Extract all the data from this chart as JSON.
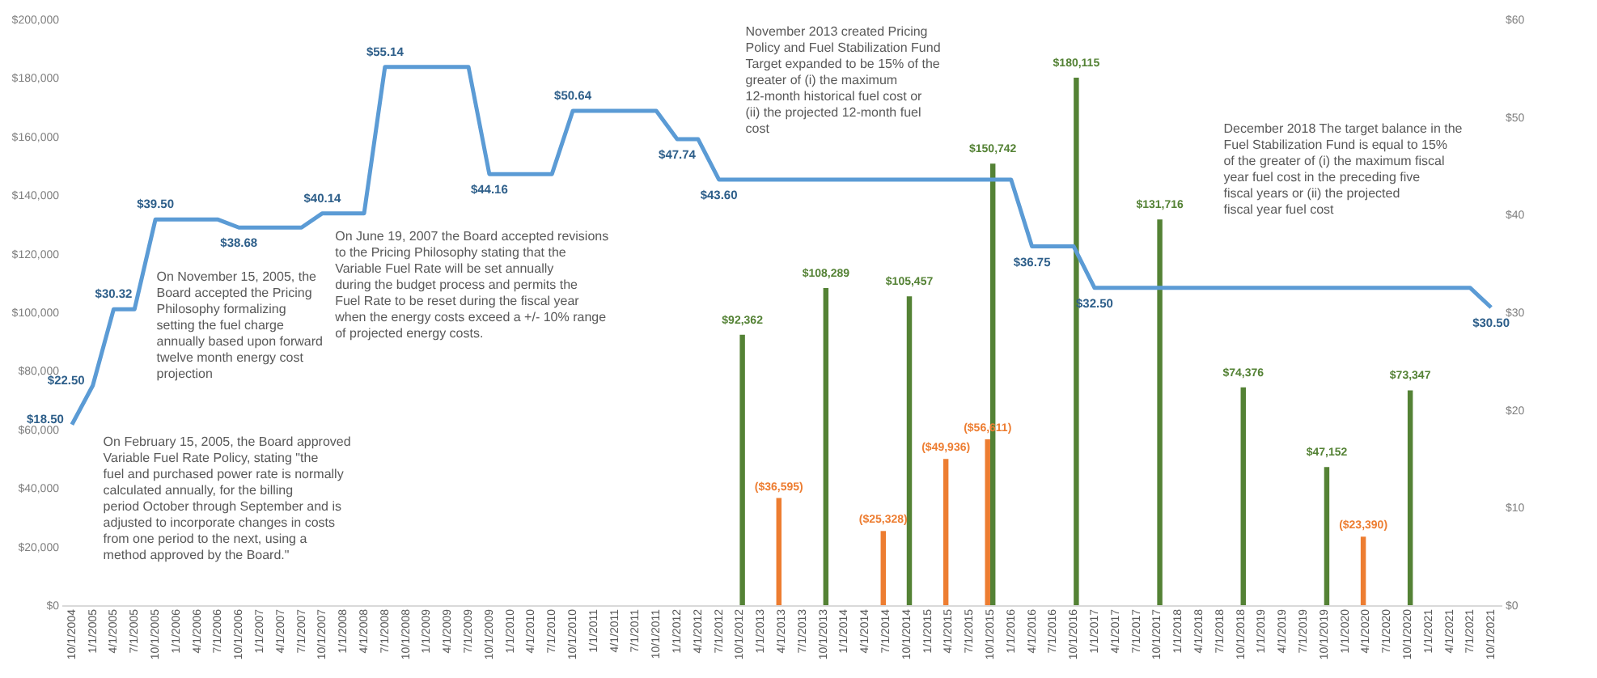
{
  "chart_data": {
    "type": "bar",
    "categories": [
      "10/1/2004",
      "1/1/2005",
      "4/1/2005",
      "7/1/2005",
      "10/1/2005",
      "1/1/2006",
      "4/1/2006",
      "7/1/2006",
      "10/1/2006",
      "1/1/2007",
      "4/1/2007",
      "7/1/2007",
      "10/1/2007",
      "1/1/2008",
      "4/1/2008",
      "7/1/2008",
      "10/1/2008",
      "1/1/2009",
      "4/1/2009",
      "7/1/2009",
      "10/1/2009",
      "1/1/2010",
      "4/1/2010",
      "7/1/2010",
      "10/1/2010",
      "1/1/2011",
      "4/1/2011",
      "7/1/2011",
      "10/1/2011",
      "1/1/2012",
      "4/1/2012",
      "7/1/2012",
      "10/1/2012",
      "1/1/2013",
      "4/1/2013",
      "7/1/2013",
      "10/1/2013",
      "1/1/2014",
      "4/1/2014",
      "7/1/2014",
      "10/1/2014",
      "1/1/2015",
      "4/1/2015",
      "7/1/2015",
      "10/1/2015",
      "1/1/2016",
      "4/1/2016",
      "7/1/2016",
      "10/1/2016",
      "1/1/2017",
      "4/1/2017",
      "7/1/2017",
      "10/1/2017",
      "1/1/2018",
      "4/1/2018",
      "7/1/2018",
      "10/1/2018",
      "1/1/2019",
      "4/1/2019",
      "7/1/2019",
      "10/1/2019",
      "1/1/2020",
      "4/1/2020",
      "7/1/2020",
      "10/1/2020",
      "1/1/2021",
      "4/1/2021",
      "7/1/2021",
      "10/1/2021"
    ],
    "series": [
      {
        "color": "#548235",
        "values": [
          null,
          null,
          null,
          null,
          null,
          null,
          null,
          null,
          null,
          null,
          null,
          null,
          null,
          null,
          null,
          null,
          null,
          null,
          null,
          null,
          null,
          null,
          null,
          null,
          null,
          null,
          null,
          null,
          null,
          null,
          null,
          null,
          92362,
          null,
          null,
          null,
          108289,
          null,
          null,
          null,
          105457,
          null,
          null,
          null,
          150742,
          null,
          null,
          null,
          180115,
          null,
          null,
          null,
          131716,
          null,
          null,
          null,
          74376,
          null,
          null,
          null,
          47152,
          null,
          null,
          null,
          73347,
          null,
          null,
          null,
          null
        ],
        "value_labels": [
          null,
          null,
          null,
          null,
          null,
          null,
          null,
          null,
          null,
          null,
          null,
          null,
          null,
          null,
          null,
          null,
          null,
          null,
          null,
          null,
          null,
          null,
          null,
          null,
          null,
          null,
          null,
          null,
          null,
          null,
          null,
          null,
          "$92,362",
          null,
          null,
          null,
          "$108,289",
          null,
          null,
          null,
          "$105,457",
          null,
          null,
          null,
          "$150,742",
          null,
          null,
          null,
          "$180,115",
          null,
          null,
          null,
          "$131,716",
          null,
          null,
          null,
          "$74,376",
          null,
          null,
          null,
          "$47,152",
          null,
          null,
          null,
          "$73,347",
          null,
          null,
          null,
          null
        ]
      },
      {
        "color": "#ed7d31",
        "values": [
          null,
          null,
          null,
          null,
          null,
          null,
          null,
          null,
          null,
          null,
          null,
          null,
          null,
          null,
          null,
          null,
          null,
          null,
          null,
          null,
          null,
          null,
          null,
          null,
          null,
          null,
          null,
          null,
          null,
          null,
          null,
          null,
          null,
          null,
          36595,
          null,
          null,
          null,
          null,
          25328,
          null,
          null,
          49936,
          null,
          56611,
          null,
          null,
          null,
          null,
          null,
          null,
          null,
          null,
          null,
          null,
          null,
          null,
          null,
          null,
          null,
          null,
          null,
          23390,
          null,
          null,
          null,
          null,
          null,
          null
        ],
        "value_labels": [
          null,
          null,
          null,
          null,
          null,
          null,
          null,
          null,
          null,
          null,
          null,
          null,
          null,
          null,
          null,
          null,
          null,
          null,
          null,
          null,
          null,
          null,
          null,
          null,
          null,
          null,
          null,
          null,
          null,
          null,
          null,
          null,
          null,
          null,
          "($36,595)",
          null,
          null,
          null,
          null,
          "($25,328)",
          null,
          null,
          "($49,936)",
          null,
          "($56,611)",
          null,
          null,
          null,
          null,
          null,
          null,
          null,
          null,
          null,
          null,
          null,
          null,
          null,
          null,
          null,
          null,
          null,
          "($23,390)",
          null,
          null,
          null,
          null,
          null,
          null
        ]
      },
      {
        "type": "line",
        "axis": "y2",
        "color": "#5b9bd5",
        "values": [
          18.5,
          22.5,
          30.32,
          30.32,
          39.5,
          39.5,
          39.5,
          39.5,
          38.68,
          38.68,
          38.68,
          38.68,
          40.14,
          40.14,
          40.14,
          55.14,
          55.14,
          55.14,
          55.14,
          55.14,
          44.16,
          44.16,
          44.16,
          44.16,
          50.64,
          50.64,
          50.64,
          50.64,
          50.64,
          47.74,
          47.74,
          43.6,
          43.6,
          43.6,
          43.6,
          43.6,
          43.6,
          43.6,
          43.6,
          43.6,
          43.6,
          43.6,
          43.6,
          43.6,
          43.6,
          43.6,
          36.75,
          36.75,
          36.75,
          32.5,
          32.5,
          32.5,
          32.5,
          32.5,
          32.5,
          32.5,
          32.5,
          32.5,
          32.5,
          32.5,
          32.5,
          32.5,
          32.5,
          32.5,
          32.5,
          32.5,
          32.5,
          32.5,
          30.5
        ],
        "value_labels": [
          "$18.50",
          "$22.50",
          "$30.32",
          null,
          "$39.50",
          null,
          null,
          null,
          "$38.68",
          null,
          null,
          null,
          "$40.14",
          null,
          null,
          "$55.14",
          null,
          null,
          null,
          null,
          "$44.16",
          null,
          null,
          null,
          "$50.64",
          null,
          null,
          null,
          null,
          "$47.74",
          null,
          "$43.60",
          null,
          null,
          null,
          null,
          null,
          null,
          null,
          null,
          null,
          null,
          null,
          null,
          null,
          null,
          "$36.75",
          null,
          null,
          "$32.50",
          null,
          null,
          null,
          null,
          null,
          null,
          null,
          null,
          null,
          null,
          null,
          null,
          null,
          null,
          null,
          null,
          null,
          null,
          "$30.50"
        ]
      }
    ],
    "ylim": [
      0,
      200000
    ],
    "yticks": [
      {
        "value": 0,
        "label": "$0"
      },
      {
        "value": 20000,
        "label": "$20,000"
      },
      {
        "value": 40000,
        "label": "$40,000"
      },
      {
        "value": 60000,
        "label": "$60,000"
      },
      {
        "value": 80000,
        "label": "$80,000"
      },
      {
        "value": 100000,
        "label": "$100,000"
      },
      {
        "value": 120000,
        "label": "$120,000"
      },
      {
        "value": 140000,
        "label": "$140,000"
      },
      {
        "value": 160000,
        "label": "$160,000"
      },
      {
        "value": 180000,
        "label": "$180,000"
      },
      {
        "value": 200000,
        "label": "$200,000"
      }
    ],
    "y2lim": [
      0,
      60
    ],
    "y2ticks": [
      {
        "value": 0,
        "label": "$0"
      },
      {
        "value": 10,
        "label": "$10"
      },
      {
        "value": 20,
        "label": "$20"
      },
      {
        "value": 30,
        "label": "$30"
      },
      {
        "value": 40,
        "label": "$40"
      },
      {
        "value": 50,
        "label": "$50"
      },
      {
        "value": 60,
        "label": "$60"
      }
    ],
    "annotations": [
      "On February 15, 2005, the Board approved Variable Fuel Rate Policy, stating \"the fuel and purchased power rate is normally calculated annually, for the billing period October through September and is adjusted to incorporate changes in costs from one period to the next, using a method approved by the Board.\"",
      "On November 15, 2005, the Board accepted the Pricing Philosophy formalizing setting the fuel charge annually based upon forward twelve month energy cost projection",
      "On June 19, 2007 the Board accepted revisions to the Pricing Philosophy stating that the Variable Fuel Rate will be set annually during the budget process and permits the Fuel Rate to be reset during the fiscal year when the energy costs exceed a +/- 10% range of projected energy costs.",
      "November 2013 created Pricing Policy and Fuel Stabilization Fund Target expanded to be 15% of the greater of (i) the maximum 12-month historical fuel cost or (ii) the projected 12-month fuel cost",
      "December 2018 The target balance in the Fuel Stabilization Fund is equal to 15% of the greater of (i) the maximum fiscal year fuel cost in the preceding five fiscal years or (ii) the projected fiscal year fuel cost"
    ],
    "grid": false,
    "legend": false,
    "marker": "none"
  }
}
